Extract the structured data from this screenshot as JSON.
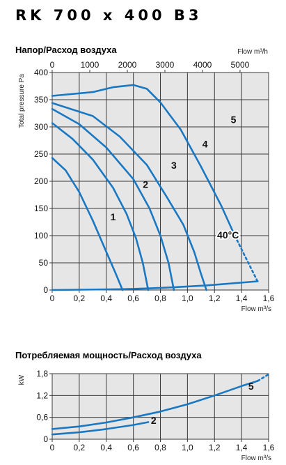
{
  "model_title": "RK 700 x 400 B3",
  "colors": {
    "curve": "#1a78c2",
    "plot_bg": "#e6e6e6",
    "grid": "#3a3a3a"
  },
  "chart_data": [
    {
      "type": "line",
      "title": "Напор/Расход воздуха",
      "xlabel": "Flow m³/s",
      "ylabel": "Total pressure Pa",
      "top_axis_label": "Flow m³/h",
      "xlim": [
        0,
        1.6
      ],
      "ylim": [
        0,
        400
      ],
      "x_ticks": [
        "0",
        "0,2",
        "0,4",
        "0,6",
        "0,8",
        "1,0",
        "1,2",
        "1,4",
        "1,6"
      ],
      "y_ticks": [
        "0",
        "50",
        "100",
        "150",
        "200",
        "250",
        "300",
        "350",
        "400"
      ],
      "top_ticks": [
        "0",
        "1000",
        "2000",
        "3000",
        "4000",
        "5000"
      ],
      "top_tick_values": [
        0,
        1000,
        2000,
        3000,
        4000,
        5000
      ],
      "grid": true,
      "annotation": "40°C",
      "series": [
        {
          "name": "1",
          "x": [
            0,
            0.1,
            0.2,
            0.3,
            0.4,
            0.47,
            0.52
          ],
          "y": [
            243,
            220,
            180,
            128,
            70,
            30,
            0
          ]
        },
        {
          "name": "2",
          "x": [
            0,
            0.15,
            0.3,
            0.45,
            0.55,
            0.62,
            0.67,
            0.71
          ],
          "y": [
            307,
            278,
            240,
            188,
            140,
            95,
            50,
            0
          ]
        },
        {
          "name": "3",
          "x": [
            0,
            0.2,
            0.4,
            0.6,
            0.72,
            0.8,
            0.86,
            0.9
          ],
          "y": [
            333,
            305,
            262,
            204,
            150,
            100,
            50,
            0
          ]
        },
        {
          "name": "4",
          "x": [
            0,
            0.3,
            0.5,
            0.7,
            0.85,
            0.97,
            1.05,
            1.1,
            1.14
          ],
          "y": [
            344,
            320,
            282,
            230,
            170,
            120,
            70,
            30,
            0
          ]
        },
        {
          "name": "5",
          "x": [
            0,
            0.3,
            0.45,
            0.6,
            0.7,
            0.8,
            0.95,
            1.1,
            1.25,
            1.35
          ],
          "y": [
            357,
            364,
            373,
            377,
            370,
            345,
            295,
            227,
            155,
            100
          ]
        },
        {
          "name": "5-extension",
          "dashed": true,
          "x": [
            1.35,
            1.42,
            1.48,
            1.52
          ],
          "y": [
            100,
            65,
            35,
            15
          ]
        },
        {
          "name": "system",
          "x": [
            0,
            0.52,
            0.71,
            0.9,
            1.14,
            1.52
          ],
          "y": [
            0,
            1.5,
            3,
            5,
            8.5,
            16
          ]
        }
      ],
      "labels": [
        "1",
        "2",
        "3",
        "4",
        "5"
      ],
      "label_positions": [
        [
          0.45,
          128
        ],
        [
          0.69,
          188
        ],
        [
          0.9,
          223
        ],
        [
          1.13,
          262
        ],
        [
          1.34,
          307
        ]
      ]
    },
    {
      "type": "line",
      "title": "Потребляемая мощность/Расход воздуха",
      "xlabel": "Flow m³/s",
      "ylabel": "kW",
      "xlim": [
        0,
        1.6
      ],
      "ylim": [
        0,
        1.8
      ],
      "x_ticks": [
        "0",
        "0,2",
        "0,4",
        "0,6",
        "0,8",
        "1,0",
        "1,2",
        "1,4",
        "1,6"
      ],
      "y_ticks": [
        "0",
        "0,6",
        "1,2",
        "1,8"
      ],
      "grid": true,
      "series": [
        {
          "name": "5",
          "x": [
            0,
            0.2,
            0.4,
            0.6,
            0.8,
            1.0,
            1.2,
            1.4,
            1.52
          ],
          "y": [
            0.28,
            0.35,
            0.46,
            0.6,
            0.76,
            0.96,
            1.2,
            1.46,
            1.6
          ]
        },
        {
          "name": "5-extension",
          "dashed": true,
          "x": [
            1.52,
            1.6
          ],
          "y": [
            1.6,
            1.78
          ]
        },
        {
          "name": "2",
          "x": [
            0,
            0.2,
            0.4,
            0.6,
            0.71
          ],
          "y": [
            0.13,
            0.19,
            0.28,
            0.39,
            0.47
          ]
        }
      ],
      "labels": [
        "5",
        "2"
      ],
      "label_positions": [
        [
          1.47,
          1.36
        ],
        [
          0.75,
          0.42
        ]
      ]
    }
  ]
}
